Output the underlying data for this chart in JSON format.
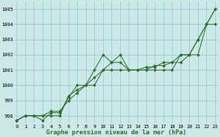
{
  "xlabel": "Graphe pression niveau de la mer (hPa)",
  "bg_color": "#cce8e8",
  "grid_color": "#99cccc",
  "line_color": "#2d6e2d",
  "x_ticks": [
    0,
    1,
    2,
    3,
    4,
    5,
    6,
    7,
    8,
    9,
    10,
    11,
    12,
    13,
    14,
    15,
    16,
    17,
    18,
    19,
    20,
    21,
    22,
    23
  ],
  "ylim": [
    997.5,
    1005.5
  ],
  "xlim": [
    -0.3,
    23.3
  ],
  "y_ticks": [
    998,
    999,
    1000,
    1001,
    1002,
    1003,
    1004,
    1005
  ],
  "series": [
    [
      997.7,
      998.0,
      998.0,
      997.7,
      998.2,
      998.2,
      999.2,
      1000.0,
      1000.0,
      1001.0,
      1002.0,
      1001.5,
      1002.0,
      1001.0,
      1001.0,
      1001.0,
      1001.0,
      1001.0,
      1001.0,
      1002.0,
      1002.0,
      1003.0,
      1004.0,
      1005.0
    ],
    [
      997.7,
      998.0,
      998.0,
      998.0,
      998.3,
      998.3,
      999.0,
      999.5,
      1000.0,
      1000.0,
      1001.0,
      1001.5,
      1001.5,
      1001.0,
      1001.0,
      1001.2,
      1001.2,
      1001.5,
      1001.5,
      1001.5,
      1002.0,
      1002.0,
      1004.0,
      1004.0
    ],
    [
      997.7,
      998.0,
      998.0,
      998.0,
      998.0,
      998.0,
      999.3,
      999.7,
      1000.0,
      1000.5,
      1001.0,
      1001.0,
      1001.0,
      1001.0,
      1001.0,
      1001.0,
      1001.3,
      1001.3,
      1001.5,
      1002.0,
      1002.0,
      1003.0,
      1004.0,
      1005.0
    ]
  ],
  "marker": "D",
  "markersize": 2.0,
  "linewidth": 0.8,
  "tick_fontsize": 5.0,
  "xlabel_fontsize": 6.5,
  "xlabel_fontweight": "bold"
}
